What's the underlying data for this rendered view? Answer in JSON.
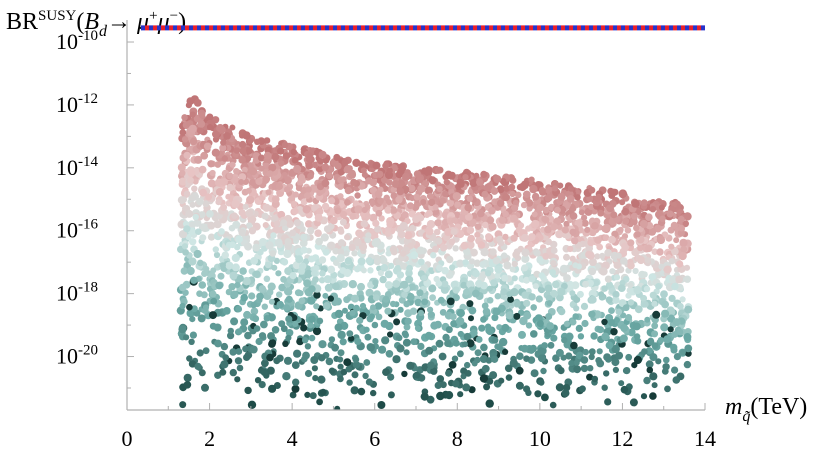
{
  "chart_data": {
    "type": "scatter",
    "title": "",
    "ylabel": {
      "prefix": "BR",
      "superscript": "SUSY",
      "open": "(",
      "base": "B",
      "sub": "d",
      "arrow": "→ ",
      "mu1": "μ",
      "sup1": "+",
      "mu2": "μ",
      "sup2": "−",
      "close": ")"
    },
    "xlabel": {
      "base": "m",
      "sub": "q̃",
      "unit": "(TeV)"
    },
    "x_scale": "linear",
    "y_scale": "log",
    "xlim": [
      0,
      14
    ],
    "ylim_log10": [
      -21.7,
      -9.3
    ],
    "x_ticks": [
      {
        "value": 0,
        "label": "0"
      },
      {
        "value": 2,
        "label": "2"
      },
      {
        "value": 4,
        "label": "4"
      },
      {
        "value": 6,
        "label": "6"
      },
      {
        "value": 8,
        "label": "8"
      },
      {
        "value": 10,
        "label": "10"
      },
      {
        "value": 12,
        "label": "12"
      },
      {
        "value": 14,
        "label": "14"
      }
    ],
    "y_ticks": [
      {
        "log10": -10,
        "base": "10",
        "exp": "-10"
      },
      {
        "log10": -12,
        "base": "10",
        "exp": "-12"
      },
      {
        "log10": -14,
        "base": "10",
        "exp": "-14"
      },
      {
        "log10": -16,
        "base": "10",
        "exp": "-16"
      },
      {
        "log10": -18,
        "base": "10",
        "exp": "-18"
      },
      {
        "log10": -20,
        "base": "10",
        "exp": "-20"
      }
    ],
    "reference_line": {
      "log10_value": -9.55,
      "style": "dashed",
      "colors": [
        "#e8212a",
        "#2733c9"
      ]
    },
    "scatter_envelope": {
      "x_min": 1.3,
      "x_max": 13.6,
      "upper_log10": [
        [
          1.3,
          -12.6
        ],
        [
          1.55,
          -11.6
        ],
        [
          1.9,
          -12.3
        ],
        [
          3,
          -13.0
        ],
        [
          5,
          -13.6
        ],
        [
          8,
          -14.1
        ],
        [
          10,
          -14.4
        ],
        [
          12,
          -14.8
        ],
        [
          13.3,
          -15.1
        ],
        [
          13.6,
          -15.5
        ]
      ],
      "lower_log10": -21.7
    },
    "color_scale": {
      "low": "#1e4b47",
      "mid_low": "#6aa8a4",
      "mid": "#cfe6e4",
      "mid_high": "#e8c4c4",
      "high": "#c07576"
    },
    "grid": false,
    "legend": "none"
  }
}
